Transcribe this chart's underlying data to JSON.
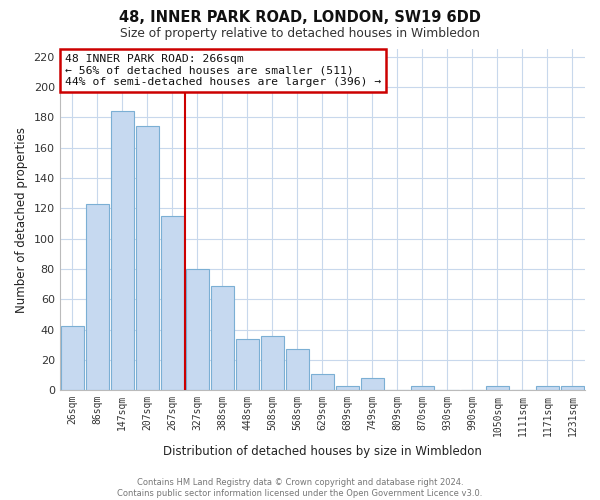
{
  "title": "48, INNER PARK ROAD, LONDON, SW19 6DD",
  "subtitle": "Size of property relative to detached houses in Wimbledon",
  "xlabel": "Distribution of detached houses by size in Wimbledon",
  "ylabel": "Number of detached properties",
  "bar_labels": [
    "26sqm",
    "86sqm",
    "147sqm",
    "207sqm",
    "267sqm",
    "327sqm",
    "388sqm",
    "448sqm",
    "508sqm",
    "568sqm",
    "629sqm",
    "689sqm",
    "749sqm",
    "809sqm",
    "870sqm",
    "930sqm",
    "990sqm",
    "1050sqm",
    "1111sqm",
    "1171sqm",
    "1231sqm"
  ],
  "bar_values": [
    42,
    123,
    184,
    174,
    115,
    80,
    69,
    34,
    36,
    27,
    11,
    3,
    8,
    0,
    3,
    0,
    0,
    3,
    0,
    3,
    3
  ],
  "bar_color": "#c6d9f0",
  "bar_edge_color": "#7bafd4",
  "vline_x": 4.5,
  "vline_color": "#cc0000",
  "ylim": [
    0,
    225
  ],
  "yticks": [
    0,
    20,
    40,
    60,
    80,
    100,
    120,
    140,
    160,
    180,
    200,
    220
  ],
  "annotation_title": "48 INNER PARK ROAD: 266sqm",
  "annotation_line1": "← 56% of detached houses are smaller (511)",
  "annotation_line2": "44% of semi-detached houses are larger (396) →",
  "footer_line1": "Contains HM Land Registry data © Crown copyright and database right 2024.",
  "footer_line2": "Contains public sector information licensed under the Open Government Licence v3.0.",
  "background_color": "#ffffff",
  "grid_color": "#c8d8ec"
}
